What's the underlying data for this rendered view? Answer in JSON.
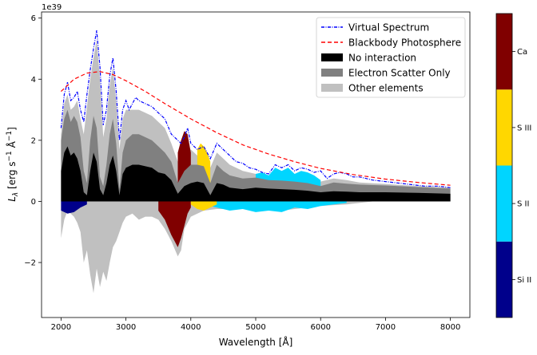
{
  "chart_data": {
    "type": "area",
    "xlabel": "Wavelength [Å]",
    "ylabel_parts": [
      "L",
      "λ",
      " [erg s",
      "−1",
      " Å",
      "−1",
      "]"
    ],
    "offset_text": "1e39",
    "xlim": [
      1700,
      8300
    ],
    "ylim": [
      -3.8e+39,
      6.2e+39
    ],
    "xticks": [
      2000,
      3000,
      4000,
      5000,
      6000,
      7000,
      8000
    ],
    "xtick_labels": [
      "2000",
      "3000",
      "4000",
      "5000",
      "6000",
      "7000",
      "8000"
    ],
    "yticks": [
      -2e+39,
      0,
      2e+39,
      4e+39,
      6e+39
    ],
    "ytick_labels": [
      "−2",
      "0",
      "2",
      "4",
      "6"
    ],
    "grid": false,
    "legend_position": "upper-right",
    "legend": [
      {
        "label": "Virtual Spectrum",
        "style": "line-dashdot",
        "color": "#0000ff"
      },
      {
        "label": "Blackbody Photosphere",
        "style": "line-dashed",
        "color": "#ff0000"
      },
      {
        "label": "No interaction",
        "style": "patch",
        "color": "#000000"
      },
      {
        "label": "Electron Scatter Only",
        "style": "patch",
        "color": "#808080"
      },
      {
        "label": "Other elements",
        "style": "patch",
        "color": "#c0c0c0"
      }
    ],
    "colorbar": {
      "labels": [
        "Si II",
        "S II",
        "S III",
        "Ca"
      ],
      "colors": [
        "#00008b",
        "#00d5ff",
        "#ffd700",
        "#800000"
      ]
    },
    "series": [
      {
        "name": "Virtual Spectrum",
        "kind": "line",
        "color": "#0000ff",
        "x": [
          2000,
          2050,
          2100,
          2150,
          2200,
          2250,
          2300,
          2350,
          2400,
          2450,
          2500,
          2550,
          2600,
          2650,
          2700,
          2750,
          2800,
          2850,
          2900,
          2950,
          3000,
          3050,
          3100,
          3150,
          3200,
          3300,
          3400,
          3500,
          3600,
          3700,
          3800,
          3850,
          3900,
          3950,
          4000,
          4100,
          4200,
          4300,
          4400,
          4500,
          4600,
          4700,
          4800,
          4900,
          5000,
          5100,
          5200,
          5300,
          5400,
          5500,
          5600,
          5700,
          5800,
          5900,
          6000,
          6100,
          6200,
          6300,
          6400,
          6500,
          6600,
          6700,
          6800,
          7000,
          7200,
          7400,
          7600,
          7800,
          8000
        ],
        "y": [
          2.4e+39,
          3.5e+39,
          3.9e+39,
          3.3e+39,
          3.4e+39,
          3.6e+39,
          3e+39,
          2.6e+39,
          3.5e+39,
          4.3e+39,
          5e+39,
          5.6e+39,
          4.4e+39,
          2.5e+39,
          3e+39,
          4.1e+39,
          4.7e+39,
          3.6e+39,
          2e+39,
          3e+39,
          3.3e+39,
          3e+39,
          3.2e+39,
          3.4e+39,
          3.3e+39,
          3.2e+39,
          3.1e+39,
          2.9e+39,
          2.7e+39,
          2.2e+39,
          2e+39,
          1.9e+39,
          2.1e+39,
          2.4e+39,
          1.9e+39,
          1.7e+39,
          1.8e+39,
          1.4e+39,
          1.9e+39,
          1.7e+39,
          1.5e+39,
          1.3e+39,
          1.25e+39,
          1.1e+39,
          1.05e+39,
          9.5e+38,
          9e+38,
          1.2e+39,
          1.1e+39,
          1.2e+39,
          1e+39,
          1.1e+39,
          1.05e+39,
          9.5e+38,
          1e+39,
          7.5e+38,
          9e+38,
          9.5e+38,
          9e+38,
          8e+38,
          8e+38,
          7.5e+38,
          7e+38,
          6.5e+38,
          6e+38,
          5.5e+38,
          5e+38,
          5e+38,
          4.5e+38
        ]
      },
      {
        "name": "Blackbody Photosphere",
        "kind": "line",
        "color": "#ff0000",
        "x": [
          2000,
          2200,
          2400,
          2600,
          2800,
          3000,
          3300,
          3600,
          4000,
          4400,
          4800,
          5200,
          5600,
          6000,
          6500,
          7000,
          7500,
          8000
        ],
        "y": [
          3.6e+39,
          4e+39,
          4.2e+39,
          4.25e+39,
          4.15e+39,
          3.95e+39,
          3.6e+39,
          3.2e+39,
          2.7e+39,
          2.25e+39,
          1.85e+39,
          1.55e+39,
          1.3e+39,
          1.08e+39,
          8.8e+38,
          7.3e+38,
          6.2e+38,
          5.3e+38
        ]
      },
      {
        "name": "No interaction",
        "kind": "area",
        "color": "#000000",
        "x": [
          2000,
          2050,
          2100,
          2150,
          2200,
          2250,
          2300,
          2350,
          2400,
          2450,
          2500,
          2550,
          2600,
          2650,
          2700,
          2750,
          2800,
          2850,
          2900,
          2950,
          3000,
          3100,
          3200,
          3300,
          3400,
          3500,
          3600,
          3700,
          3800,
          3900,
          4000,
          4100,
          4200,
          4300,
          4400,
          4500,
          4600,
          4800,
          5000,
          5200,
          5400,
          5600,
          5800,
          6000,
          6200,
          6400,
          6600,
          7000,
          7500,
          8000
        ],
        "y": [
          1e+39,
          1.6e+39,
          1.8e+39,
          1.5e+39,
          1.6e+39,
          1.4e+39,
          1e+39,
          3e+38,
          2e+38,
          1e+39,
          1.6e+39,
          1.3e+39,
          4e+38,
          2e+38,
          6e+38,
          1.2e+39,
          1.5e+39,
          1e+39,
          2e+38,
          9e+38,
          1.1e+39,
          1.2e+39,
          1.2e+39,
          1.15e+39,
          1.1e+39,
          9.5e+38,
          9e+38,
          7e+38,
          2.5e+38,
          5e+38,
          6e+38,
          6.5e+38,
          6e+38,
          2e+38,
          6e+38,
          5.5e+38,
          4.5e+38,
          4e+38,
          4.5e+38,
          4.2e+38,
          4e+38,
          3.8e+38,
          3.5e+38,
          3e+38,
          3.3e+38,
          3.2e+38,
          3e+38,
          3e+38,
          2.8e+38,
          2.5e+38
        ]
      },
      {
        "name": "Electron Scatter Only",
        "kind": "area",
        "color": "#808080",
        "x": [
          2000,
          2050,
          2100,
          2150,
          2200,
          2250,
          2300,
          2350,
          2400,
          2450,
          2500,
          2550,
          2600,
          2650,
          2700,
          2750,
          2800,
          2850,
          2900,
          2950,
          3000,
          3100,
          3200,
          3300,
          3400,
          3500,
          3600,
          3700,
          3800,
          3900,
          4000,
          4100,
          4200,
          4300,
          4400,
          4500,
          4600,
          4800,
          5000,
          5200,
          5400,
          5600,
          5800,
          6000,
          6200,
          6400,
          6600,
          7000,
          7500,
          8000
        ],
        "y": [
          2e+39,
          2.7e+39,
          3e+39,
          2.6e+39,
          2.8e+39,
          2.6e+39,
          2.1e+39,
          1e+39,
          6e+38,
          2e+39,
          2.8e+39,
          2.4e+39,
          8e+38,
          5e+38,
          1.2e+39,
          2.2e+39,
          2.7e+39,
          1.9e+39,
          4e+38,
          1.6e+39,
          2e+39,
          2.2e+39,
          2.2e+39,
          2.1e+39,
          2e+39,
          1.8e+39,
          1.6e+39,
          1.3e+39,
          6e+38,
          1e+39,
          1.2e+39,
          1.2e+39,
          1.15e+39,
          6e+38,
          1.2e+39,
          1e+39,
          8.5e+38,
          7.5e+38,
          7.8e+38,
          7e+38,
          6.8e+38,
          6.5e+38,
          6e+38,
          5e+38,
          6.2e+38,
          5.8e+38,
          5.5e+38,
          5.2e+38,
          4.7e+38,
          4.2e+38
        ]
      },
      {
        "name": "Other elements",
        "kind": "area",
        "color": "#c0c0c0",
        "x": [
          2000,
          2050,
          2100,
          2150,
          2200,
          2250,
          2300,
          2350,
          2400,
          2450,
          2500,
          2550,
          2600,
          2650,
          2700,
          2750,
          2800,
          2850,
          2900,
          2950,
          3000,
          3100,
          3200,
          3300,
          3400,
          3500,
          3600,
          3700,
          3800,
          3900,
          4000,
          4100,
          4200,
          4300,
          4400,
          4500,
          4600,
          4800,
          5000,
          5200,
          5400,
          5600,
          5800,
          6000,
          6200,
          6400,
          6600,
          7000,
          7500,
          8000
        ],
        "y": [
          2.2e+39,
          3.2e+39,
          3.5e+39,
          3e+39,
          3.1e+39,
          3.3e+39,
          2.7e+39,
          2.2e+39,
          3.1e+39,
          4e+39,
          4.7e+39,
          5.3e+39,
          4e+39,
          2.1e+39,
          2.7e+39,
          3.8e+39,
          4.4e+39,
          3.3e+39,
          1.7e+39,
          2.7e+39,
          3e+39,
          3e+39,
          3e+39,
          2.9e+39,
          2.8e+39,
          2.6e+39,
          2.4e+39,
          1.9e+39,
          1.3e+39,
          1.6e+39,
          1.7e+39,
          1.5e+39,
          1.55e+39,
          1.1e+39,
          1.6e+39,
          1.4e+39,
          1.2e+39,
          1e+39,
          9e+38,
          7.5e+38,
          8e+38,
          8e+38,
          7.5e+38,
          6.5e+38,
          7.5e+38,
          7e+38,
          6.2e+38,
          5.7e+38,
          5e+38,
          4.5e+38
        ]
      },
      {
        "name": "Ca",
        "kind": "area",
        "color": "#800000",
        "x": [
          3800,
          3850,
          3900,
          3950,
          4000
        ],
        "y": [
          1.6e+39,
          2e+39,
          2.3e+39,
          2.2e+39,
          1.6e+39
        ]
      },
      {
        "name": "S II",
        "kind": "area",
        "color": "#00d5ff",
        "x": [
          5000,
          5100,
          5200,
          5300,
          5400,
          5500,
          5600,
          5700,
          5800,
          5900,
          6000
        ],
        "y": [
          9e+38,
          9.5e+38,
          8.5e+38,
          1.1e+39,
          1e+39,
          1.1e+39,
          9e+38,
          1e+39,
          9.5e+38,
          8.5e+38,
          7e+38
        ]
      },
      {
        "name": "S III",
        "kind": "area",
        "color": "#ffd700",
        "x": [
          4100,
          4150,
          4200,
          4250,
          4300
        ],
        "y": [
          1.7e+39,
          1.9e+39,
          1.8e+39,
          1.6e+39,
          1.3e+39
        ]
      },
      {
        "name": "Absorbed (negative)",
        "kind": "area",
        "color": "#c0c0c0",
        "x": [
          2000,
          2050,
          2100,
          2150,
          2200,
          2250,
          2300,
          2350,
          2400,
          2450,
          2500,
          2550,
          2600,
          2650,
          2700,
          2750,
          2800,
          2850,
          2900,
          2950,
          3000,
          3100,
          3200,
          3300,
          3400,
          3500,
          3600,
          3700,
          3800,
          3850,
          3900,
          4000,
          4200,
          4400,
          4600,
          4800,
          5000,
          5200,
          5400,
          5600,
          5800,
          6000,
          6200,
          6400,
          6600,
          6800
        ],
        "y": [
          -1.2e+39,
          -6e+38,
          -3e+38,
          -4e+38,
          -5e+38,
          -7e+38,
          -1e+39,
          -2e+39,
          -1.6e+39,
          -2.4e+39,
          -3e+39,
          -2.2e+39,
          -2.8e+39,
          -2.3e+39,
          -2.6e+39,
          -2e+39,
          -1.5e+39,
          -1.3e+39,
          -1e+39,
          -7e+38,
          -5e+38,
          -4e+38,
          -6e+38,
          -5e+38,
          -5e+38,
          -6e+38,
          -9e+38,
          -1.3e+39,
          -1.8e+39,
          -1.6e+39,
          -9e+38,
          -5e+38,
          -3e+38,
          -2.5e+38,
          -2.5e+38,
          -2e+38,
          -2.5e+38,
          -3e+38,
          -3e+38,
          -2.5e+38,
          -2e+38,
          -1.5e+38,
          -1.2e+38,
          -1e+38,
          -5e+37,
          0
        ]
      },
      {
        "name": "Ca (negative)",
        "kind": "area",
        "color": "#800000",
        "x": [
          3500,
          3600,
          3700,
          3750,
          3800,
          3850,
          3900,
          3950,
          4000
        ],
        "y": [
          -3e+38,
          -6e+38,
          -1.1e+39,
          -1.3e+39,
          -1.5e+39,
          -1.2e+39,
          -8e+38,
          -4e+38,
          -2e+38
        ]
      },
      {
        "name": "S II (negative)",
        "kind": "area",
        "color": "#00d5ff",
        "x": [
          4200,
          4400,
          4600,
          4800,
          5000,
          5200,
          5400,
          5600,
          5800,
          6000,
          6200,
          6400
        ],
        "y": [
          -1e+38,
          -2e+38,
          -3e+38,
          -2.5e+38,
          -3.5e+38,
          -3e+38,
          -3.5e+38,
          -2e+38,
          -2.5e+38,
          -1.5e+38,
          -1e+38,
          -5e+37
        ]
      },
      {
        "name": "Si II (negative)",
        "kind": "area",
        "color": "#00008b",
        "x": [
          2000,
          2100,
          2200,
          2300,
          2400
        ],
        "y": [
          -3e+38,
          -4e+38,
          -3.5e+38,
          -2e+38,
          -1e+38
        ]
      },
      {
        "name": "S III (negative)",
        "kind": "area",
        "color": "#ffd700",
        "x": [
          4000,
          4100,
          4200,
          4300,
          4400
        ],
        "y": [
          -1e+38,
          -2.5e+38,
          -3e+38,
          -2e+38,
          -1e+38
        ]
      }
    ]
  }
}
